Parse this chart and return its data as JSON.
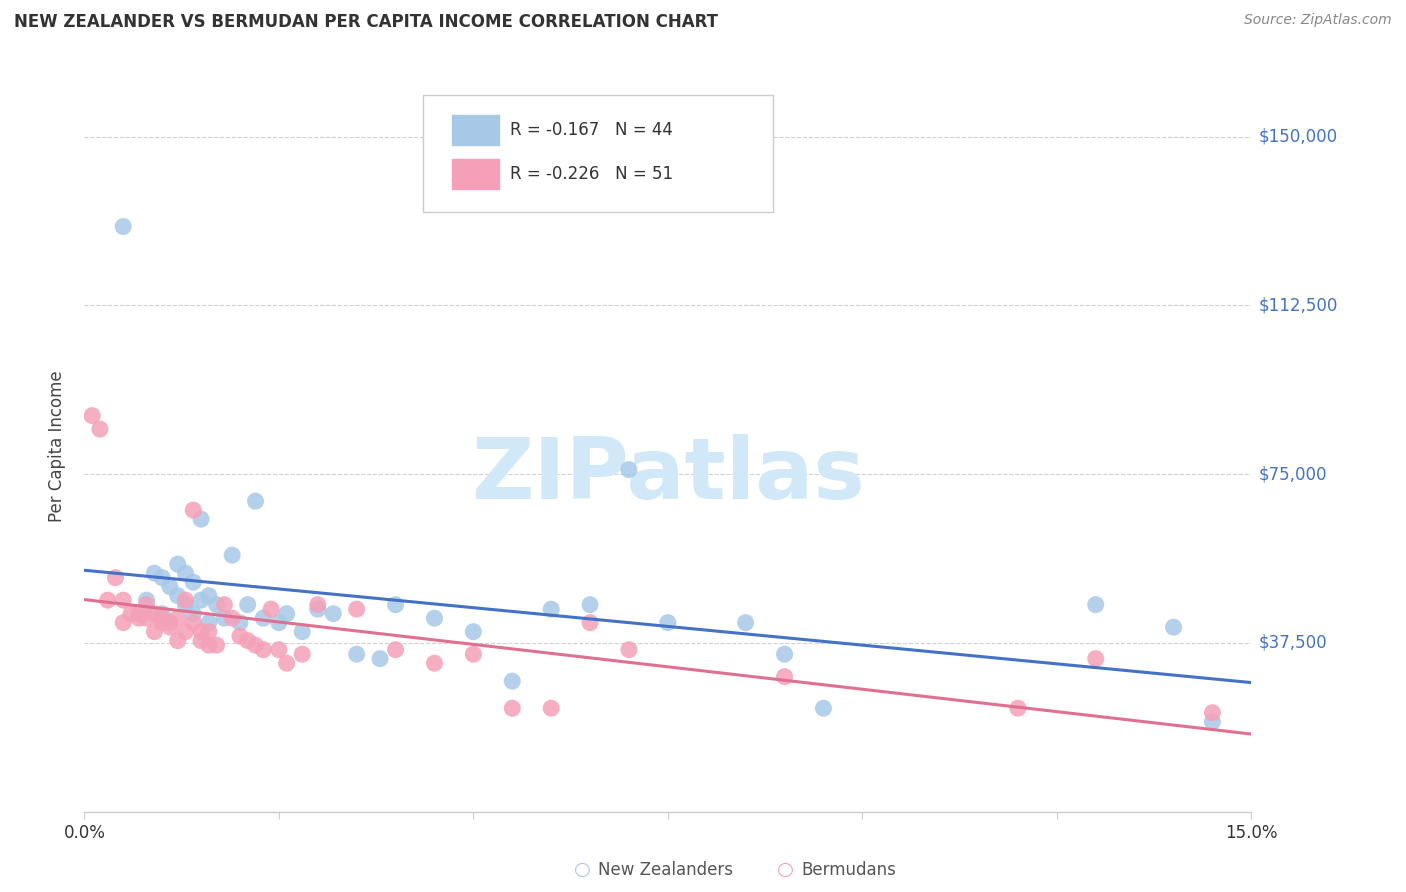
{
  "title": "NEW ZEALANDER VS BERMUDAN PER CAPITA INCOME CORRELATION CHART",
  "source": "Source: ZipAtlas.com",
  "ylabel_label": "Per Capita Income",
  "yticks": [
    0,
    37500,
    75000,
    112500,
    150000
  ],
  "ytick_labels": [
    "",
    "$37,500",
    "$75,000",
    "$112,500",
    "$150,000"
  ],
  "xlim": [
    0.0,
    0.15
  ],
  "ylim": [
    0,
    162500
  ],
  "legend_entries": [
    {
      "color": "#a8c8e8",
      "R": "-0.167",
      "N": "44",
      "label": "New Zealanders"
    },
    {
      "color": "#f4a0b8",
      "R": "-0.226",
      "N": "51",
      "label": "Bermudans"
    }
  ],
  "nz_scatter_x": [
    0.005,
    0.008,
    0.009,
    0.01,
    0.01,
    0.011,
    0.012,
    0.012,
    0.013,
    0.013,
    0.014,
    0.014,
    0.015,
    0.015,
    0.016,
    0.016,
    0.017,
    0.018,
    0.019,
    0.02,
    0.021,
    0.022,
    0.023,
    0.025,
    0.026,
    0.028,
    0.03,
    0.032,
    0.035,
    0.038,
    0.04,
    0.045,
    0.05,
    0.055,
    0.06,
    0.065,
    0.07,
    0.075,
    0.085,
    0.09,
    0.095,
    0.13,
    0.14,
    0.145
  ],
  "nz_scatter_y": [
    130000,
    47000,
    53000,
    52000,
    44000,
    50000,
    55000,
    48000,
    46000,
    53000,
    44000,
    51000,
    47000,
    65000,
    42000,
    48000,
    46000,
    43000,
    57000,
    42000,
    46000,
    69000,
    43000,
    42000,
    44000,
    40000,
    45000,
    44000,
    35000,
    34000,
    46000,
    43000,
    40000,
    29000,
    45000,
    46000,
    76000,
    42000,
    42000,
    35000,
    23000,
    46000,
    41000,
    20000
  ],
  "bm_scatter_x": [
    0.001,
    0.002,
    0.003,
    0.004,
    0.005,
    0.005,
    0.006,
    0.007,
    0.007,
    0.008,
    0.008,
    0.009,
    0.009,
    0.01,
    0.01,
    0.011,
    0.011,
    0.012,
    0.012,
    0.013,
    0.013,
    0.014,
    0.014,
    0.015,
    0.015,
    0.016,
    0.016,
    0.017,
    0.018,
    0.019,
    0.02,
    0.021,
    0.022,
    0.023,
    0.024,
    0.025,
    0.026,
    0.028,
    0.03,
    0.035,
    0.04,
    0.045,
    0.05,
    0.055,
    0.06,
    0.065,
    0.07,
    0.09,
    0.12,
    0.13,
    0.145
  ],
  "bm_scatter_y": [
    88000,
    85000,
    47000,
    52000,
    42000,
    47000,
    44000,
    43000,
    44000,
    43000,
    46000,
    40000,
    44000,
    42000,
    43000,
    42000,
    41000,
    38000,
    43000,
    47000,
    40000,
    42000,
    67000,
    40000,
    38000,
    37000,
    40000,
    37000,
    46000,
    43000,
    39000,
    38000,
    37000,
    36000,
    45000,
    36000,
    33000,
    35000,
    46000,
    45000,
    36000,
    33000,
    35000,
    23000,
    23000,
    42000,
    36000,
    30000,
    23000,
    34000,
    22000
  ],
  "nz_line_color": "#4472c4",
  "bm_line_color": "#e07090",
  "nz_scatter_color": "#a8c8e8",
  "bm_scatter_color": "#f4a0b8",
  "grid_color": "#d0d0d0",
  "ytick_color": "#4472c4",
  "watermark_text": "ZIPatlas",
  "watermark_color": "#d0e8f8",
  "background_color": "#ffffff"
}
